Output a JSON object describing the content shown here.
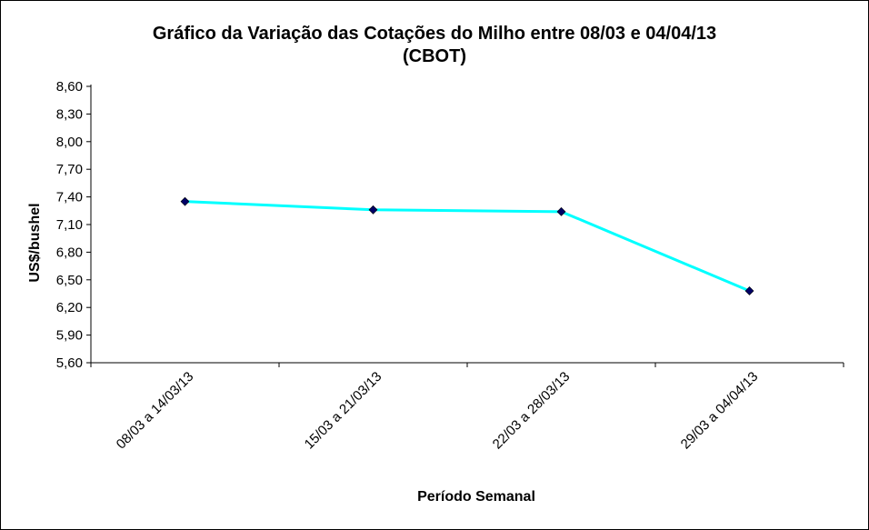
{
  "chart_data": {
    "type": "line",
    "title": "Gráfico da Variação das Cotações do Milho entre 08/03 e 04/04/13",
    "subtitle": "(CBOT)",
    "xlabel": "Período Semanal",
    "ylabel": "US$/bushel",
    "categories": [
      "08/03 a 14/03/13",
      "15/03 a 21/03/13",
      "22/03 a 28/03/13",
      "29/03 a 04/04/13"
    ],
    "series": [
      {
        "values": [
          7.35,
          7.26,
          7.24,
          6.38
        ]
      }
    ],
    "ylim": [
      5.6,
      8.6
    ],
    "yticks": [
      "5,60",
      "5,90",
      "6,20",
      "6,50",
      "6,80",
      "7,10",
      "7,40",
      "7,70",
      "8,00",
      "8,30",
      "8,60"
    ],
    "grid": false,
    "legend": "none",
    "colors": {
      "line": "#00ffff",
      "marker": "#000066",
      "axis": "#000000"
    }
  }
}
